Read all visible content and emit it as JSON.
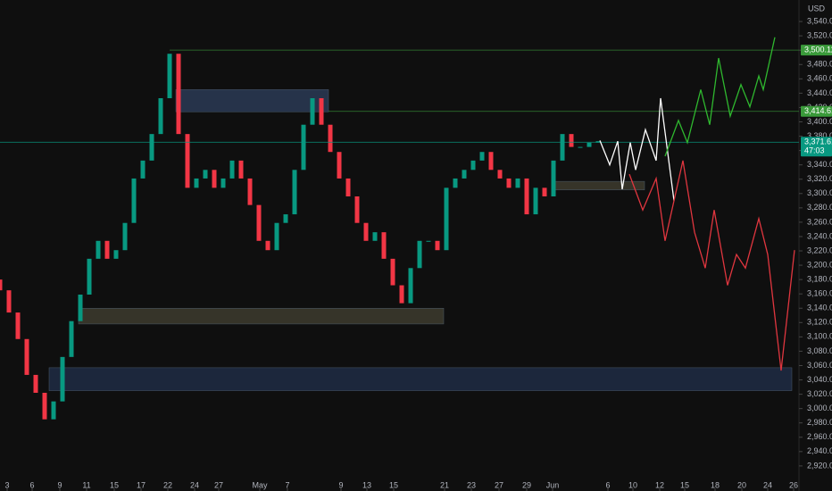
{
  "chart_data": {
    "type": "candlestick",
    "currency": "USD",
    "up_color": "#089981",
    "down_color": "#f23645",
    "xlim": [
      0,
      89.5
    ],
    "ylim": [
      2885,
      3570
    ],
    "x": [
      0,
      1,
      2,
      3,
      4,
      5,
      6,
      7,
      8,
      9,
      10,
      11,
      12,
      13,
      14,
      15,
      16,
      17,
      18,
      19,
      20,
      21,
      22,
      23,
      24,
      25,
      26,
      27,
      28,
      29,
      30,
      31,
      32,
      33,
      34,
      35,
      36,
      37,
      38,
      39,
      40,
      41,
      42,
      43,
      44,
      45,
      46,
      47,
      48,
      49,
      50,
      51,
      52,
      53,
      54,
      55,
      56,
      57,
      58,
      59,
      60,
      61,
      62,
      63,
      64,
      65,
      66,
      67
    ],
    "open": [
      3180,
      3165,
      3134,
      3097,
      3047,
      3022,
      2985,
      3010,
      3072,
      3122,
      3159,
      3209,
      3234,
      3209,
      3221,
      3259,
      3321,
      3346,
      3383,
      3433,
      3495,
      3383,
      3308,
      3321,
      3333,
      3308,
      3321,
      3346,
      3321,
      3284,
      3234,
      3221,
      3259,
      3271,
      3333,
      3396,
      3433,
      3396,
      3358,
      3321,
      3296,
      3259,
      3234,
      3246,
      3209,
      3172,
      3147,
      3196,
      3234,
      3234,
      3221,
      3308,
      3321,
      3333,
      3346,
      3358,
      3333,
      3321,
      3308,
      3321,
      3271,
      3308,
      3296,
      3346,
      3383,
      3365,
      3365,
      3371
    ],
    "close": [
      3165,
      3134,
      3097,
      3047,
      3022,
      2985,
      3010,
      3072,
      3122,
      3159,
      3209,
      3234,
      3209,
      3221,
      3259,
      3321,
      3346,
      3383,
      3433,
      3495,
      3383,
      3308,
      3321,
      3333,
      3308,
      3321,
      3346,
      3321,
      3284,
      3234,
      3221,
      3259,
      3271,
      3333,
      3396,
      3433,
      3396,
      3358,
      3321,
      3296,
      3259,
      3234,
      3246,
      3209,
      3172,
      3147,
      3196,
      3234,
      3234,
      3221,
      3308,
      3321,
      3333,
      3346,
      3358,
      3333,
      3321,
      3308,
      3321,
      3271,
      3308,
      3296,
      3346,
      3383,
      3365,
      3365,
      3371,
      3373
    ],
    "yticks": [
      {
        "value": 2920,
        "label": "2,920.00"
      },
      {
        "value": 2940,
        "label": "2,940.00"
      },
      {
        "value": 2960,
        "label": "2,960.00"
      },
      {
        "value": 2980,
        "label": "2,980.00"
      },
      {
        "value": 3000,
        "label": "3,000.00"
      },
      {
        "value": 3020,
        "label": "3,020.00"
      },
      {
        "value": 3040,
        "label": "3,040.00"
      },
      {
        "value": 3060,
        "label": "3,060.00"
      },
      {
        "value": 3080,
        "label": "3,080.00"
      },
      {
        "value": 3100,
        "label": "3,100.00"
      },
      {
        "value": 3120,
        "label": "3,120.00"
      },
      {
        "value": 3140,
        "label": "3,140.00"
      },
      {
        "value": 3160,
        "label": "3,160.00"
      },
      {
        "value": 3180,
        "label": "3,180.00"
      },
      {
        "value": 3200,
        "label": "3,200.00"
      },
      {
        "value": 3220,
        "label": "3,220.00"
      },
      {
        "value": 3240,
        "label": "3,240.00"
      },
      {
        "value": 3260,
        "label": "3,260.00"
      },
      {
        "value": 3280,
        "label": "3,280.00"
      },
      {
        "value": 3300,
        "label": "3,300.00"
      },
      {
        "value": 3320,
        "label": "3,320.00"
      },
      {
        "value": 3340,
        "label": "3,340.00"
      },
      {
        "value": 3360,
        "label": "3,360.00"
      },
      {
        "value": 3380,
        "label": "3,380.00"
      },
      {
        "value": 3400,
        "label": "3,400.00"
      },
      {
        "value": 3420,
        "label": "3,420.00"
      },
      {
        "value": 3440,
        "label": "3,440.00"
      },
      {
        "value": 3460,
        "label": "3,460.00"
      },
      {
        "value": 3480,
        "label": "3,480.00"
      },
      {
        "value": 3500,
        "label": "3,500.00"
      },
      {
        "value": 3520,
        "label": "3,520.00"
      },
      {
        "value": 3540,
        "label": "3,540.00"
      }
    ],
    "xticks": [
      {
        "value": 0.8,
        "label": "3"
      },
      {
        "value": 3.6,
        "label": "6"
      },
      {
        "value": 6.7,
        "label": "9"
      },
      {
        "value": 9.7,
        "label": "11"
      },
      {
        "value": 12.8,
        "label": "15"
      },
      {
        "value": 15.8,
        "label": "17"
      },
      {
        "value": 18.8,
        "label": "22"
      },
      {
        "value": 21.8,
        "label": "24"
      },
      {
        "value": 24.5,
        "label": "27"
      },
      {
        "value": 29.1,
        "label": "May"
      },
      {
        "value": 32.2,
        "label": "7"
      },
      {
        "value": 38.2,
        "label": "9"
      },
      {
        "value": 41.1,
        "label": "13"
      },
      {
        "value": 44.1,
        "label": "15"
      },
      {
        "value": 49.8,
        "label": "21"
      },
      {
        "value": 52.8,
        "label": "23"
      },
      {
        "value": 55.9,
        "label": "27"
      },
      {
        "value": 59.0,
        "label": "29"
      },
      {
        "value": 61.9,
        "label": "Jun"
      },
      {
        "value": 68.1,
        "label": "6"
      },
      {
        "value": 70.9,
        "label": "10"
      },
      {
        "value": 73.9,
        "label": "12"
      },
      {
        "value": 76.7,
        "label": "15"
      },
      {
        "value": 80.1,
        "label": "18"
      },
      {
        "value": 83.1,
        "label": "20"
      },
      {
        "value": 86.0,
        "label": "24"
      },
      {
        "value": 88.9,
        "label": "26"
      }
    ],
    "zones": [
      {
        "x": [
          19.7,
          36.8
        ],
        "y": [
          3414,
          3445
        ],
        "color": "#2a3a55"
      },
      {
        "x": [
          62.0,
          72.2
        ],
        "y": [
          3305,
          3317
        ],
        "color": "#3d3b2e"
      },
      {
        "x": [
          8.8,
          49.7
        ],
        "y": [
          3118,
          3140
        ],
        "color": "#3d3b2e"
      },
      {
        "x": [
          5.5,
          88.7
        ],
        "y": [
          3025,
          3057
        ],
        "color": "#1f2c44"
      }
    ],
    "levels": [
      {
        "value": 3500.11,
        "label": "3,500.11",
        "x_start": 19,
        "color": "#3a9a3a"
      },
      {
        "value": 3414.61,
        "label": "3,414.61",
        "x_start": 36.8,
        "color": "#3a9a3a"
      },
      {
        "value": 3371.61,
        "label": "3,371.61",
        "countdown": "47:03",
        "x_start": 0,
        "color": "#089981"
      }
    ],
    "projections": [
      {
        "color": "#ffffff",
        "x": [
          67.2,
          68.3,
          69.2,
          69.7,
          70.6,
          71.2,
          72.3,
          73.5,
          74.0,
          75.5
        ],
        "values": [
          3374,
          3340,
          3373,
          3306,
          3371,
          3333,
          3389,
          3346,
          3433,
          3290
        ]
      },
      {
        "color": "#2fb82f",
        "x": [
          74.5,
          76.0,
          77.0,
          78.5,
          79.5,
          80.5,
          81.8,
          83.0,
          84.0,
          85.0,
          85.5,
          86.8
        ],
        "values": [
          3352,
          3402,
          3371,
          3445,
          3396,
          3489,
          3408,
          3452,
          3421,
          3464,
          3445,
          3518
        ]
      },
      {
        "color": "#e0363f",
        "x": [
          70.5,
          72.0,
          73.5,
          74.5,
          76.5,
          77.8,
          79.0,
          80.0,
          81.5,
          82.5,
          83.5,
          85.0,
          86.0,
          87.5,
          89.0
        ],
        "values": [
          3327,
          3277,
          3321,
          3234,
          3346,
          3246,
          3196,
          3277,
          3172,
          3215,
          3196,
          3265,
          3215,
          3053,
          3221
        ]
      }
    ]
  }
}
